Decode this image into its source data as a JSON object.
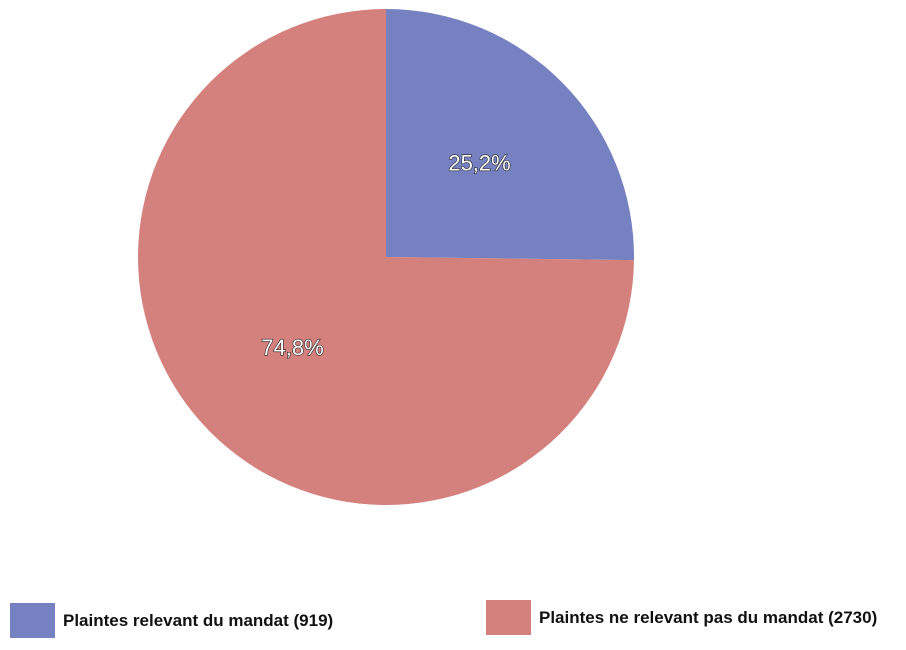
{
  "chart_data": {
    "type": "pie",
    "categories": [
      "Plaintes relevant du mandat (919)",
      "Plaintes ne relevant pas du mandat (2730)"
    ],
    "values": [
      25.2,
      74.8
    ],
    "value_labels": [
      "25,2%",
      "74,8%"
    ],
    "colors": [
      "#7581c1",
      "#d4817e"
    ]
  }
}
